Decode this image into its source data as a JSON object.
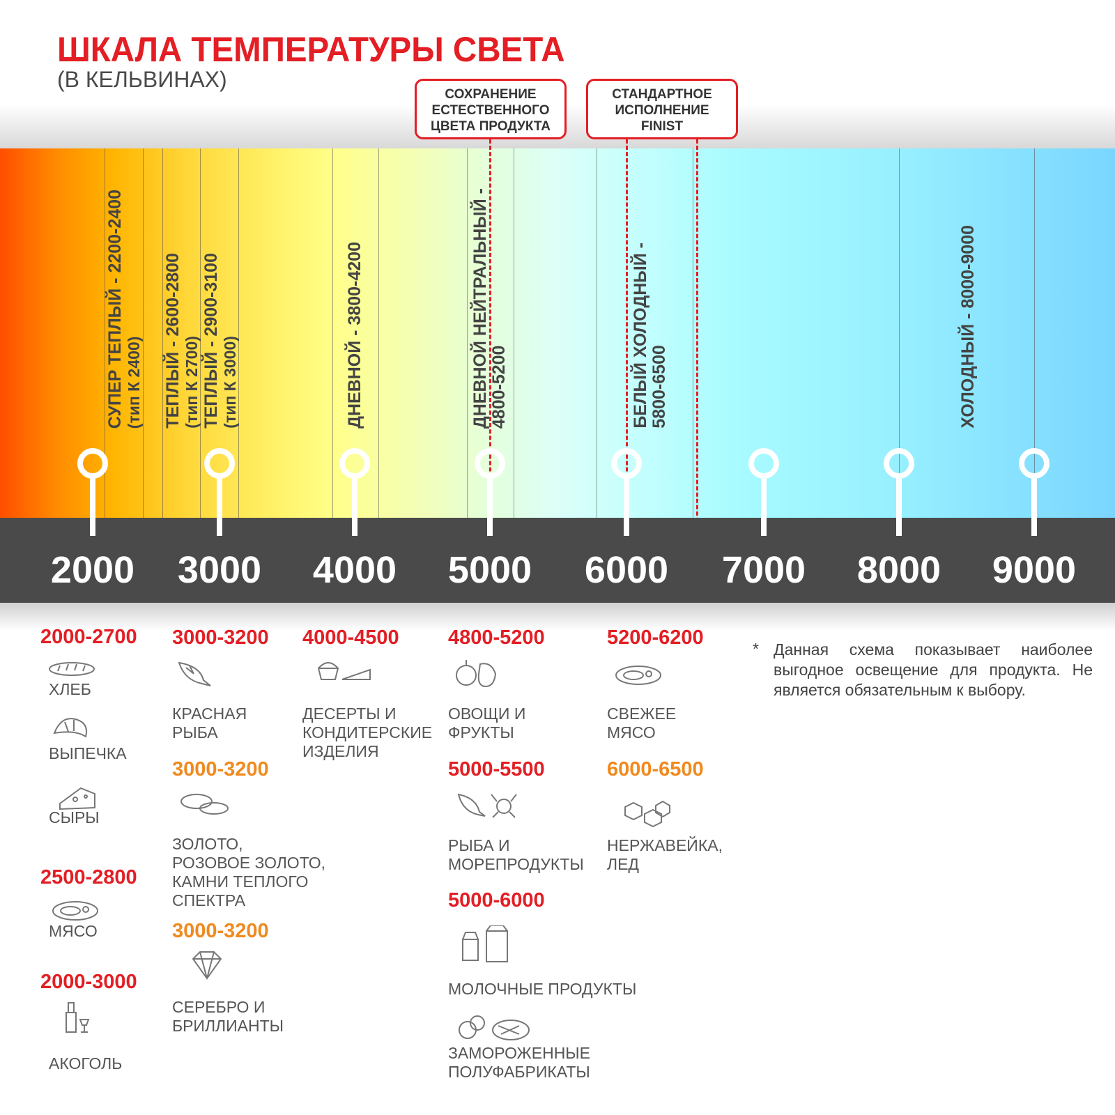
{
  "title": "ШКАЛА ТЕМПЕРАТУРЫ СВЕТА",
  "subtitle": "(В КЕЛЬВИНАХ)",
  "callouts": [
    {
      "lines": [
        "СОХРАНЕНИЕ",
        "ЕСТЕСТВЕННОГО",
        "ЦВЕТА ПРОДУКТА"
      ]
    },
    {
      "lines": [
        "СТАНДАРТНОЕ",
        "ИСПОЛНЕНИЕ",
        "FINIST"
      ]
    }
  ],
  "scale": {
    "ticks": [
      "2000",
      "3000",
      "4000",
      "5000",
      "6000",
      "7000",
      "8000",
      "9000"
    ]
  },
  "zones": [
    {
      "label": "СУПЕР ТЕПЛЫЙ - 2200-2400",
      "sub": "(тип К 2400)"
    },
    {
      "label": "ТЕПЛЫЙ - 2600-2800",
      "sub": "(тип К 2700)"
    },
    {
      "label": "ТЕПЛЫЙ - 2900-3100",
      "sub": "(тип К 3000)"
    },
    {
      "label": "ДНЕВНОЙ - 3800-4200"
    },
    {
      "label": "ДНЕВНОЙ НЕЙТРАЛЬНЫЙ -",
      "sub": "4800-5200"
    },
    {
      "label": "БЕЛЫЙ ХОЛОДНЫЙ -",
      "sub": "5800-6500"
    },
    {
      "label": "ХОЛОДНЫЙ - 8000-9000"
    }
  ],
  "colors": {
    "accent": "#e31e24",
    "orange": "#f08a1e",
    "band": "#4a4a4a"
  },
  "products": [
    {
      "range": "2000-2700",
      "items": [
        {
          "icon": "bread-icon",
          "label": "ХЛЕБ"
        },
        {
          "icon": "croissant-icon",
          "label": "ВЫПЕЧКА"
        },
        {
          "icon": "cheese-icon",
          "label": "СЫРЫ"
        }
      ]
    },
    {
      "range": "2500-2800",
      "items": [
        {
          "icon": "steak-icon",
          "label": "МЯСО"
        }
      ]
    },
    {
      "range": "2000-3000",
      "items": [
        {
          "icon": "bottle-icon",
          "label": "АКОГОЛЬ"
        }
      ]
    },
    {
      "range": "3000-3200",
      "items": [
        {
          "icon": "fish-icon",
          "label": "КРАСНАЯ\nРЫБА"
        }
      ]
    },
    {
      "range": "3000-3200",
      "items": [
        {
          "icon": "rings-icon",
          "label": "ЗОЛОТО,\nРОЗОВОЕ ЗОЛОТО,\nКАМНИ ТЕПЛОГО\nСПЕКТРА"
        }
      ]
    },
    {
      "range": "3000-3200",
      "items": [
        {
          "icon": "diamond-icon",
          "label": "СЕРЕБРО И\nБРИЛЛИАНТЫ"
        }
      ]
    },
    {
      "range": "4000-4500",
      "items": [
        {
          "icon": "dessert-icon",
          "label": "ДЕСЕРТЫ И\nКОНДИТЕРСКИЕ\nИЗДЕЛИЯ"
        }
      ]
    },
    {
      "range": "4800-5200",
      "items": [
        {
          "icon": "fruit-icon",
          "label": "ОВОЩИ И\nФРУКТЫ"
        }
      ]
    },
    {
      "range": "5000-5500",
      "items": [
        {
          "icon": "seafood-icon",
          "label": "РЫБА И\nМОРЕПРОДУКТЫ"
        }
      ]
    },
    {
      "range": "5000-6000",
      "items": [
        {
          "icon": "milk-icon",
          "label": "МОЛОЧНЫЕ ПРОДУКТЫ"
        },
        {
          "icon": "frozen-icon",
          "label": "ЗАМОРОЖЕННЫЕ\nПОЛУФАБРИКАТЫ"
        }
      ]
    },
    {
      "range": "5200-6200",
      "items": [
        {
          "icon": "steak-icon",
          "label": "СВЕЖЕЕ\nМЯСО"
        }
      ]
    },
    {
      "range": "6000-6500",
      "items": [
        {
          "icon": "ice-icon",
          "label": "НЕРЖАВЕЙКА,\nЛЕД"
        }
      ]
    }
  ],
  "note": {
    "star": "*",
    "text": "Данная схема показывает наиболее выгодное освещение для продукта. Не является обязательным к выбору."
  }
}
